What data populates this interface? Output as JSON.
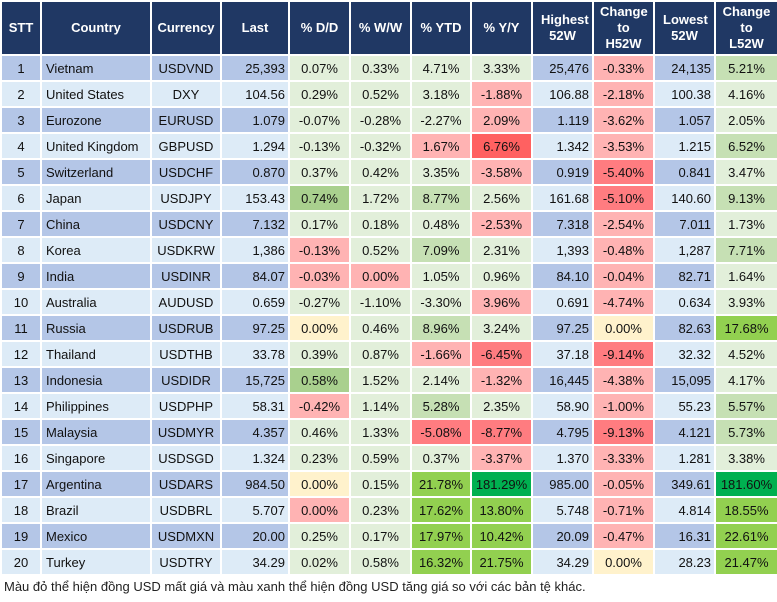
{
  "headers": [
    "STT",
    "Country",
    "Currency",
    "Last",
    "% D/D",
    "% W/W",
    "% YTD",
    "% Y/Y",
    "Highest 52W",
    "Change to H52W",
    "Lowest 52W",
    "Change to L52W"
  ],
  "palette": {
    "header": "#203864",
    "blue_dark": "#b4c6e7",
    "blue_light": "#ddebf7",
    "g1": "#e2efda",
    "g2": "#c6e0b4",
    "g3": "#a9d08e",
    "g4": "#92d050",
    "g5": "#00b050",
    "r1": "#ffb3b3",
    "r2": "#ff7c80",
    "r3": "#ff6161",
    "y": "#fff2cc"
  },
  "rows": [
    {
      "stt": "1",
      "country": "Vietnam",
      "currency": "USDVND",
      "last": "25,393",
      "dd": [
        "0.07%",
        "g1"
      ],
      "ww": [
        "0.33%",
        "g1"
      ],
      "ytd": [
        "4.71%",
        "g1"
      ],
      "yy": [
        "3.33%",
        "g1"
      ],
      "high": "25,476",
      "chh": [
        "-0.33%",
        "r1"
      ],
      "low": "24,135",
      "chl": [
        "5.21%",
        "g2"
      ]
    },
    {
      "stt": "2",
      "country": "United States",
      "currency": "DXY",
      "last": "104.56",
      "dd": [
        "0.29%",
        "g1"
      ],
      "ww": [
        "0.52%",
        "g1"
      ],
      "ytd": [
        "3.18%",
        "g1"
      ],
      "yy": [
        "-1.88%",
        "r1"
      ],
      "high": "106.88",
      "chh": [
        "-2.18%",
        "r1"
      ],
      "low": "100.38",
      "chl": [
        "4.16%",
        "g1"
      ]
    },
    {
      "stt": "3",
      "country": "Eurozone",
      "currency": "EURUSD",
      "last": "1.079",
      "dd": [
        "-0.07%",
        "g1"
      ],
      "ww": [
        "-0.28%",
        "g1"
      ],
      "ytd": [
        "-2.27%",
        "g1"
      ],
      "yy": [
        "2.09%",
        "r1"
      ],
      "high": "1.119",
      "chh": [
        "-3.62%",
        "r1"
      ],
      "low": "1.057",
      "chl": [
        "2.05%",
        "g1"
      ]
    },
    {
      "stt": "4",
      "country": "United Kingdom",
      "currency": "GBPUSD",
      "last": "1.294",
      "dd": [
        "-0.13%",
        "g1"
      ],
      "ww": [
        "-0.32%",
        "g1"
      ],
      "ytd": [
        "1.67%",
        "r1"
      ],
      "yy": [
        "6.76%",
        "r3"
      ],
      "high": "1.342",
      "chh": [
        "-3.53%",
        "r1"
      ],
      "low": "1.215",
      "chl": [
        "6.52%",
        "g2"
      ]
    },
    {
      "stt": "5",
      "country": "Switzerland",
      "currency": "USDCHF",
      "last": "0.870",
      "dd": [
        "0.37%",
        "g1"
      ],
      "ww": [
        "0.42%",
        "g1"
      ],
      "ytd": [
        "3.35%",
        "g1"
      ],
      "yy": [
        "-3.58%",
        "r1"
      ],
      "high": "0.919",
      "chh": [
        "-5.40%",
        "r2"
      ],
      "low": "0.841",
      "chl": [
        "3.47%",
        "g1"
      ]
    },
    {
      "stt": "6",
      "country": "Japan",
      "currency": "USDJPY",
      "last": "153.43",
      "dd": [
        "0.74%",
        "g3"
      ],
      "ww": [
        "1.72%",
        "g1"
      ],
      "ytd": [
        "8.77%",
        "g2"
      ],
      "yy": [
        "2.56%",
        "g1"
      ],
      "high": "161.68",
      "chh": [
        "-5.10%",
        "r2"
      ],
      "low": "140.60",
      "chl": [
        "9.13%",
        "g2"
      ]
    },
    {
      "stt": "7",
      "country": "China",
      "currency": "USDCNY",
      "last": "7.132",
      "dd": [
        "0.17%",
        "g1"
      ],
      "ww": [
        "0.18%",
        "g1"
      ],
      "ytd": [
        "0.48%",
        "g1"
      ],
      "yy": [
        "-2.53%",
        "r1"
      ],
      "high": "7.318",
      "chh": [
        "-2.54%",
        "r1"
      ],
      "low": "7.011",
      "chl": [
        "1.73%",
        "g1"
      ]
    },
    {
      "stt": "8",
      "country": "Korea",
      "currency": "USDKRW",
      "last": "1,386",
      "dd": [
        "-0.13%",
        "r1"
      ],
      "ww": [
        "0.52%",
        "g1"
      ],
      "ytd": [
        "7.09%",
        "g2"
      ],
      "yy": [
        "2.31%",
        "g1"
      ],
      "high": "1,393",
      "chh": [
        "-0.48%",
        "r1"
      ],
      "low": "1,287",
      "chl": [
        "7.71%",
        "g2"
      ]
    },
    {
      "stt": "9",
      "country": "India",
      "currency": "USDINR",
      "last": "84.07",
      "dd": [
        "-0.03%",
        "r1"
      ],
      "ww": [
        "0.00%",
        "r1"
      ],
      "ytd": [
        "1.05%",
        "g1"
      ],
      "yy": [
        "0.96%",
        "g1"
      ],
      "high": "84.10",
      "chh": [
        "-0.04%",
        "r1"
      ],
      "low": "82.71",
      "chl": [
        "1.64%",
        "g1"
      ]
    },
    {
      "stt": "10",
      "country": "Australia",
      "currency": "AUDUSD",
      "last": "0.659",
      "dd": [
        "-0.27%",
        "g1"
      ],
      "ww": [
        "-1.10%",
        "g1"
      ],
      "ytd": [
        "-3.30%",
        "g1"
      ],
      "yy": [
        "3.96%",
        "r1"
      ],
      "high": "0.691",
      "chh": [
        "-4.74%",
        "r1"
      ],
      "low": "0.634",
      "chl": [
        "3.93%",
        "g1"
      ]
    },
    {
      "stt": "11",
      "country": "Russia",
      "currency": "USDRUB",
      "last": "97.25",
      "dd": [
        "0.00%",
        "y"
      ],
      "ww": [
        "0.46%",
        "g1"
      ],
      "ytd": [
        "8.96%",
        "g2"
      ],
      "yy": [
        "3.24%",
        "g1"
      ],
      "high": "97.25",
      "chh": [
        "0.00%",
        "y"
      ],
      "low": "82.63",
      "chl": [
        "17.68%",
        "g4"
      ]
    },
    {
      "stt": "12",
      "country": "Thailand",
      "currency": "USDTHB",
      "last": "33.78",
      "dd": [
        "0.39%",
        "g1"
      ],
      "ww": [
        "0.87%",
        "g1"
      ],
      "ytd": [
        "-1.66%",
        "r1"
      ],
      "yy": [
        "-6.45%",
        "r2"
      ],
      "high": "37.18",
      "chh": [
        "-9.14%",
        "r2"
      ],
      "low": "32.32",
      "chl": [
        "4.52%",
        "g1"
      ]
    },
    {
      "stt": "13",
      "country": "Indonesia",
      "currency": "USDIDR",
      "last": "15,725",
      "dd": [
        "0.58%",
        "g3"
      ],
      "ww": [
        "1.52%",
        "g1"
      ],
      "ytd": [
        "2.14%",
        "g1"
      ],
      "yy": [
        "-1.32%",
        "r1"
      ],
      "high": "16,445",
      "chh": [
        "-4.38%",
        "r1"
      ],
      "low": "15,095",
      "chl": [
        "4.17%",
        "g1"
      ]
    },
    {
      "stt": "14",
      "country": "Philippines",
      "currency": "USDPHP",
      "last": "58.31",
      "dd": [
        "-0.42%",
        "r1"
      ],
      "ww": [
        "1.14%",
        "g1"
      ],
      "ytd": [
        "5.28%",
        "g2"
      ],
      "yy": [
        "2.35%",
        "g1"
      ],
      "high": "58.90",
      "chh": [
        "-1.00%",
        "r1"
      ],
      "low": "55.23",
      "chl": [
        "5.57%",
        "g2"
      ]
    },
    {
      "stt": "15",
      "country": "Malaysia",
      "currency": "USDMYR",
      "last": "4.357",
      "dd": [
        "0.46%",
        "g1"
      ],
      "ww": [
        "1.33%",
        "g1"
      ],
      "ytd": [
        "-5.08%",
        "r2"
      ],
      "yy": [
        "-8.77%",
        "r2"
      ],
      "high": "4.795",
      "chh": [
        "-9.13%",
        "r2"
      ],
      "low": "4.121",
      "chl": [
        "5.73%",
        "g2"
      ]
    },
    {
      "stt": "16",
      "country": "Singapore",
      "currency": "USDSGD",
      "last": "1.324",
      "dd": [
        "0.23%",
        "g1"
      ],
      "ww": [
        "0.59%",
        "g1"
      ],
      "ytd": [
        "0.37%",
        "g1"
      ],
      "yy": [
        "-3.37%",
        "r1"
      ],
      "high": "1.370",
      "chh": [
        "-3.33%",
        "r1"
      ],
      "low": "1.281",
      "chl": [
        "3.38%",
        "g1"
      ]
    },
    {
      "stt": "17",
      "country": "Argentina",
      "currency": "USDARS",
      "last": "984.50",
      "dd": [
        "0.00%",
        "y"
      ],
      "ww": [
        "0.15%",
        "g1"
      ],
      "ytd": [
        "21.78%",
        "g4"
      ],
      "yy": [
        "181.29%",
        "g5"
      ],
      "high": "985.00",
      "chh": [
        "-0.05%",
        "r1"
      ],
      "low": "349.61",
      "chl": [
        "181.60%",
        "g5"
      ]
    },
    {
      "stt": "18",
      "country": "Brazil",
      "currency": "USDBRL",
      "last": "5.707",
      "dd": [
        "0.00%",
        "r1"
      ],
      "ww": [
        "0.23%",
        "g1"
      ],
      "ytd": [
        "17.62%",
        "g4"
      ],
      "yy": [
        "13.80%",
        "g4"
      ],
      "high": "5.748",
      "chh": [
        "-0.71%",
        "r1"
      ],
      "low": "4.814",
      "chl": [
        "18.55%",
        "g4"
      ]
    },
    {
      "stt": "19",
      "country": "Mexico",
      "currency": "USDMXN",
      "last": "20.00",
      "dd": [
        "0.25%",
        "g1"
      ],
      "ww": [
        "0.17%",
        "g1"
      ],
      "ytd": [
        "17.97%",
        "g4"
      ],
      "yy": [
        "10.42%",
        "g4"
      ],
      "high": "20.09",
      "chh": [
        "-0.47%",
        "r1"
      ],
      "low": "16.31",
      "chl": [
        "22.61%",
        "g4"
      ]
    },
    {
      "stt": "20",
      "country": "Turkey",
      "currency": "USDTRY",
      "last": "34.29",
      "dd": [
        "0.02%",
        "g1"
      ],
      "ww": [
        "0.58%",
        "g1"
      ],
      "ytd": [
        "16.32%",
        "g4"
      ],
      "yy": [
        "21.75%",
        "g4"
      ],
      "high": "34.29",
      "chh": [
        "0.00%",
        "y"
      ],
      "low": "28.23",
      "chl": [
        "21.47%",
        "g4"
      ]
    }
  ],
  "footnote": "Màu đỏ thể hiện đồng USD mất giá và màu xanh thể hiện đồng USD tăng giá so với các bản tệ khác."
}
